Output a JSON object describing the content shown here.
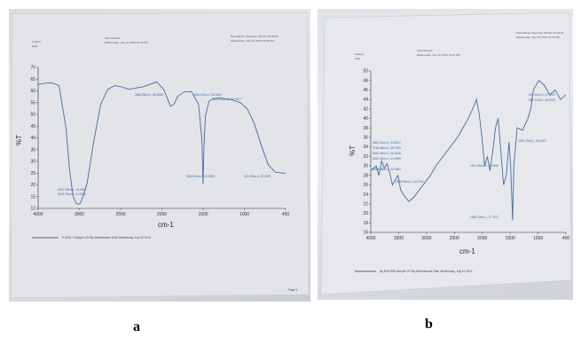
{
  "captions": {
    "a": "a",
    "b": "b"
  },
  "colors": {
    "trace": "#4a6aa0",
    "paper_a": "#e2e4e8",
    "paper_b": "#e6e8eb",
    "ink": "#2a2f3a"
  },
  "chart_data": [
    {
      "type": "line",
      "panel": "a",
      "header": {
        "left": [
          "Analyst",
          "Date"
        ],
        "center": [
          "Administrator",
          "Wednesday, July 10, 2013 12:26 PM"
        ],
        "right": [
          "PerkinElmer Spectrum Version 10.03.06",
          "Wednesday, July 10, 2013 12:28 PM"
        ]
      },
      "ylabel": "%T",
      "xlabel": "cm-1",
      "xlim": [
        4000,
        450
      ],
      "ylim": [
        12,
        70
      ],
      "x_ticks": [
        "4000",
        "3000",
        "2500",
        "2000",
        "1500",
        "1000",
        "450"
      ],
      "y_ticks": [
        "70",
        "65",
        "60",
        "55",
        "50",
        "45",
        "40",
        "35",
        "30",
        "25",
        "20",
        "15",
        "12"
      ],
      "x": [
        4000,
        3900,
        3800,
        3700,
        3600,
        3550,
        3500,
        3450,
        3420,
        3400,
        3380,
        3300,
        3200,
        3100,
        3000,
        2900,
        2800,
        2700,
        2600,
        2500,
        2400,
        2300,
        2200,
        2100,
        2050,
        2000,
        1900,
        1800,
        1700,
        1650,
        1634,
        1620,
        1600,
        1550,
        1500,
        1400,
        1300,
        1200,
        1100,
        1000,
        900,
        800,
        700,
        600,
        500,
        450
      ],
      "y": [
        63,
        63.5,
        63.6,
        62.5,
        45,
        28,
        17,
        14,
        13.8,
        14,
        15,
        22,
        40,
        55,
        61,
        62.5,
        62,
        61,
        61.5,
        62,
        63,
        64,
        61,
        54,
        55,
        58,
        60,
        60,
        55,
        40,
        22,
        38,
        50,
        56,
        57,
        57.5,
        57,
        56.5,
        55.5,
        53,
        47,
        38,
        30,
        27,
        26.5,
        26.5
      ],
      "annotations": [
        "3421.73cm-1, 13.0923",
        "3415.79cm-1, 13.0742",
        "2066.68cm-1, 54.8955",
        "1633.51cm-1, 22.9923",
        "1165.47cm-1, 55.0002",
        "1115.00cm-1, 54.7317",
        "472.32cm-1, 22.9057"
      ],
      "footer": "P 03 M-1   Sample 120 By Administrator Date Wednesday, July 10 2013",
      "page_label": "Page 1"
    },
    {
      "type": "line",
      "panel": "b",
      "header": {
        "left": [
          "Analyst",
          "Date"
        ],
        "center": [
          "Administrator",
          "Wednesday, July 10, 2013 12:27 PM"
        ],
        "right": [
          "PerkinElmer Spectrum Version 10.03.06",
          "Wednesday, July 10, 2013 12:30 PM"
        ]
      },
      "ylabel": "%T",
      "xlabel": "cm-1",
      "xlim": [
        4000,
        400
      ],
      "ylim": [
        16,
        50
      ],
      "x_ticks": [
        "4000",
        "3500",
        "3000",
        "2500",
        "2000",
        "1500",
        "1000",
        "400"
      ],
      "y_ticks": [
        "50",
        "48",
        "46",
        "44",
        "42",
        "40",
        "38",
        "36",
        "34",
        "32",
        "30",
        "28",
        "26",
        "24",
        "22",
        "20",
        "18",
        "16"
      ],
      "x": [
        4000,
        3900,
        3850,
        3800,
        3750,
        3700,
        3650,
        3600,
        3550,
        3500,
        3450,
        3400,
        3300,
        3200,
        3100,
        3000,
        2900,
        2800,
        2600,
        2400,
        2200,
        2100,
        2050,
        2000,
        1950,
        1900,
        1850,
        1800,
        1750,
        1700,
        1650,
        1600,
        1550,
        1500,
        1450,
        1420,
        1384,
        1360,
        1300,
        1200,
        1100,
        1050,
        1000,
        900,
        800,
        700,
        600,
        500,
        400
      ],
      "y": [
        29,
        30,
        28,
        31,
        29.5,
        30.5,
        28.5,
        26,
        27,
        28,
        25,
        24,
        22.5,
        23.5,
        25,
        26.5,
        28,
        30,
        33,
        36,
        40,
        42.5,
        44,
        41,
        36,
        30,
        32,
        29,
        33,
        38,
        40,
        33,
        26,
        28,
        35,
        30,
        18.5,
        30,
        38,
        37.5,
        40,
        42,
        46,
        48,
        47,
        45,
        46,
        44,
        45
      ],
      "annotations": [
        "3862.33cm-1, 30.8237",
        "3746.36cm-1, 28.7484",
        "3612.05cm-1, 26.3026",
        "3420.33cm-1, 24.3959",
        "3298.98cm-1, 22.9281",
        "2925.99cm-1, 24.7031",
        "1631.39cm-1, 32.9342",
        "1384.13cm-1, 17.7577",
        "1092.72cm-1, 38.1507",
        "619.02cm-1, 47.3227",
        "558.77cm-1, 46.9327"
      ],
      "footer": "Ag NSS 598   Sample 127 By Administrator Date Wednesday, July 10 2013"
    }
  ]
}
